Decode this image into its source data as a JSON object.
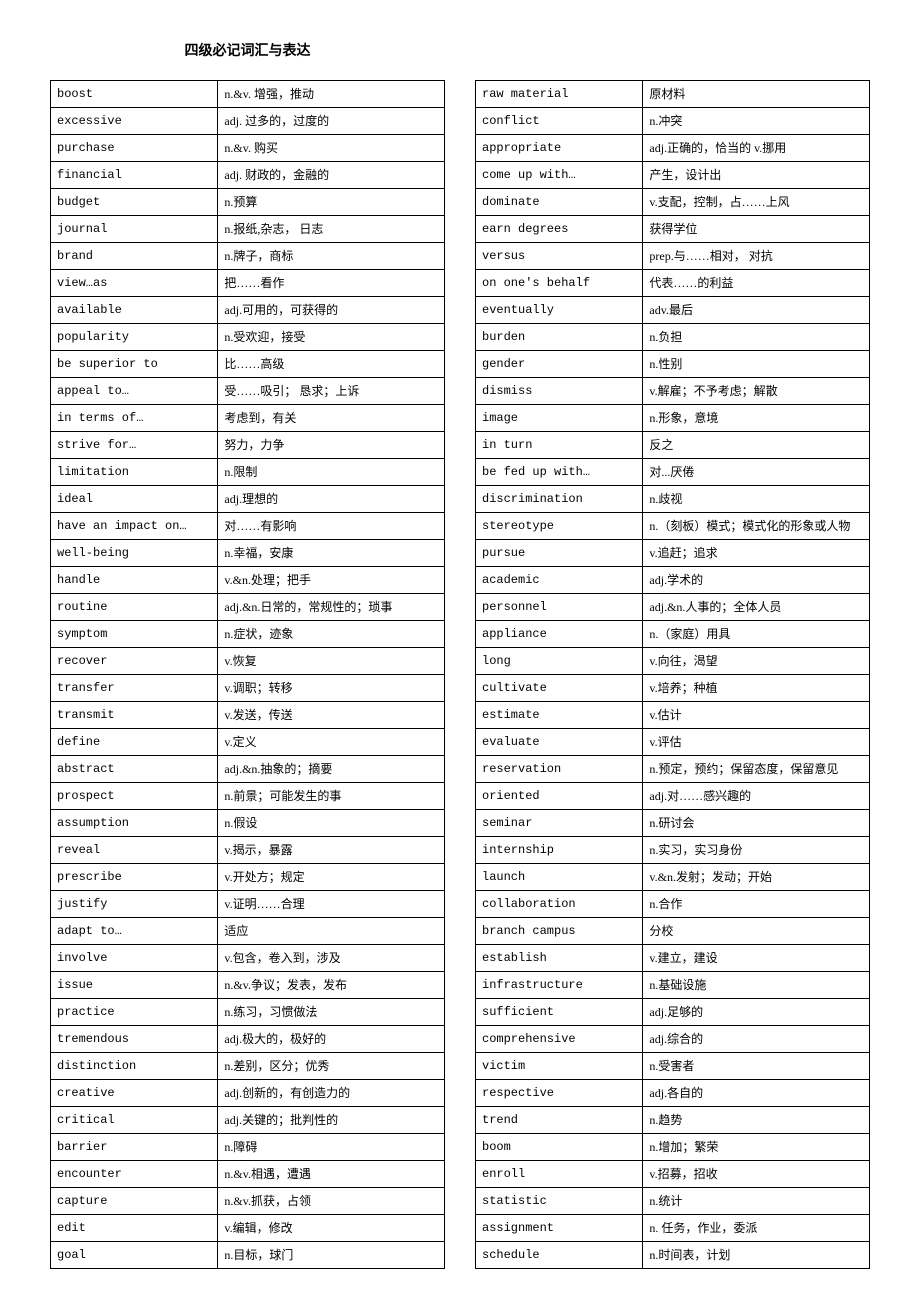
{
  "title": "四级必记词汇与表达",
  "left_table": [
    {
      "term": "boost",
      "def": "n.&v. 增强，推动"
    },
    {
      "term": "excessive",
      "def": "adj. 过多的，过度的"
    },
    {
      "term": "purchase",
      "def": "n.&v. 购买"
    },
    {
      "term": "financial",
      "def": "adj. 财政的，金融的"
    },
    {
      "term": "budget",
      "def": "n.预算"
    },
    {
      "term": "journal",
      "def": "n.报纸,杂志，  日志"
    },
    {
      "term": "brand",
      "def": "n.牌子，商标"
    },
    {
      "term": "view…as",
      "def": "把……看作"
    },
    {
      "term": "available",
      "def": "adj.可用的，可获得的"
    },
    {
      "term": "popularity",
      "def": "n.受欢迎，接受"
    },
    {
      "term": "be superior to",
      "def": "比……高级"
    },
    {
      "term": "appeal to…",
      "def": "受……吸引； 恳求；上诉"
    },
    {
      "term": "in terms of…",
      "def": "考虑到，有关"
    },
    {
      "term": "strive for…",
      "def": "努力，力争"
    },
    {
      "term": "limitation",
      "def": "n.限制"
    },
    {
      "term": "ideal",
      "def": "adj.理想的"
    },
    {
      "term": "have an impact on…",
      "def": "对……有影响"
    },
    {
      "term": "well-being",
      "def": "n.幸福，安康"
    },
    {
      "term": "handle",
      "def": "v.&n.处理；把手"
    },
    {
      "term": "routine",
      "def": "adj.&n.日常的，常规性的；琐事"
    },
    {
      "term": "symptom",
      "def": "n.症状，迹象"
    },
    {
      "term": "recover",
      "def": "v.恢复"
    },
    {
      "term": "transfer",
      "def": "v.调职；转移"
    },
    {
      "term": "transmit",
      "def": "v.发送，传送"
    },
    {
      "term": "define",
      "def": "v.定义"
    },
    {
      "term": "abstract",
      "def": "adj.&n.抽象的；摘要"
    },
    {
      "term": "prospect",
      "def": "n.前景；可能发生的事"
    },
    {
      "term": "assumption",
      "def": "n.假设"
    },
    {
      "term": "reveal",
      "def": "v.揭示，暴露"
    },
    {
      "term": "prescribe",
      "def": "v.开处方；规定"
    },
    {
      "term": "justify",
      "def": "v.证明……合理"
    },
    {
      "term": "adapt to…",
      "def": "适应"
    },
    {
      "term": "involve",
      "def": "v.包含，卷入到，涉及"
    },
    {
      "term": "issue",
      "def": "n.&v.争议；发表，发布"
    },
    {
      "term": "practice",
      "def": "n.练习，习惯做法"
    },
    {
      "term": "tremendous",
      "def": "adj.极大的，极好的"
    },
    {
      "term": "distinction",
      "def": "n.差别，区分；优秀"
    },
    {
      "term": "creative",
      "def": "adj.创新的，有创造力的"
    },
    {
      "term": "critical",
      "def": "adj.关键的；批判性的"
    },
    {
      "term": "barrier",
      "def": "n.障碍"
    },
    {
      "term": "encounter",
      "def": "n.&v.相遇，遭遇"
    },
    {
      "term": "capture",
      "def": "n.&v.抓获，占领"
    },
    {
      "term": "edit",
      "def": "v.编辑，修改"
    },
    {
      "term": "goal",
      "def": "n.目标，球门"
    }
  ],
  "right_table": [
    {
      "term": "raw material",
      "def": "原材料"
    },
    {
      "term": "conflict",
      "def": "n.冲突"
    },
    {
      "term": "appropriate",
      "def": "adj.正确的，恰当的 v.挪用"
    },
    {
      "term": "come up with…",
      "def": "产生，设计出"
    },
    {
      "term": "dominate",
      "def": "v.支配，控制，占……上风"
    },
    {
      "term": "earn degrees",
      "def": "获得学位"
    },
    {
      "term": "versus",
      "def": "prep.与……相对，  对抗"
    },
    {
      "term": "on one's behalf",
      "def": "代表……的利益"
    },
    {
      "term": "eventually",
      "def": "adv.最后"
    },
    {
      "term": "burden",
      "def": "n.负担"
    },
    {
      "term": "gender",
      "def": "n.性别"
    },
    {
      "term": "dismiss",
      "def": "v.解雇；不予考虑；解散"
    },
    {
      "term": "image",
      "def": "n.形象，意境"
    },
    {
      "term": "in turn",
      "def": "反之"
    },
    {
      "term": "be fed up with…",
      "def": "对...厌倦"
    },
    {
      "term": "discrimination",
      "def": "n.歧视"
    },
    {
      "term": "stereotype",
      "def": "n.（刻板）模式；模式化的形象或人物"
    },
    {
      "term": "pursue",
      "def": "v.追赶；追求"
    },
    {
      "term": "academic",
      "def": "adj.学术的"
    },
    {
      "term": "personnel",
      "def": "adj.&n.人事的；全体人员"
    },
    {
      "term": "appliance",
      "def": "n.（家庭）用具"
    },
    {
      "term": "long",
      "def": "v.向往，渴望"
    },
    {
      "term": "cultivate",
      "def": "v.培养；种植"
    },
    {
      "term": "estimate",
      "def": "v.估计"
    },
    {
      "term": "evaluate",
      "def": "v.评估"
    },
    {
      "term": "reservation",
      "def": "n.预定，预约；保留态度，保留意见"
    },
    {
      "term": "oriented",
      "def": "adj.对……感兴趣的"
    },
    {
      "term": "seminar",
      "def": "n.研讨会"
    },
    {
      "term": "internship",
      "def": "n.实习，实习身份"
    },
    {
      "term": "launch",
      "def": "v.&n.发射；发动；开始"
    },
    {
      "term": "collaboration",
      "def": "n.合作"
    },
    {
      "term": "branch campus",
      "def": "分校"
    },
    {
      "term": "establish",
      "def": "v.建立，建设"
    },
    {
      "term": "infrastructure",
      "def": "n.基础设施"
    },
    {
      "term": "sufficient",
      "def": "adj.足够的"
    },
    {
      "term": "comprehensive",
      "def": "adj.综合的"
    },
    {
      "term": "victim",
      "def": "n.受害者"
    },
    {
      "term": "respective",
      "def": "adj.各自的"
    },
    {
      "term": "trend",
      "def": "n.趋势"
    },
    {
      "term": "boom",
      "def": "n.增加；繁荣"
    },
    {
      "term": "enroll",
      "def": "v.招募，招收"
    },
    {
      "term": "statistic",
      "def": "n.统计"
    },
    {
      "term": "assignment",
      "def": "n. 任务，作业，委派"
    },
    {
      "term": "schedule",
      "def": "n.时间表，计划"
    }
  ]
}
